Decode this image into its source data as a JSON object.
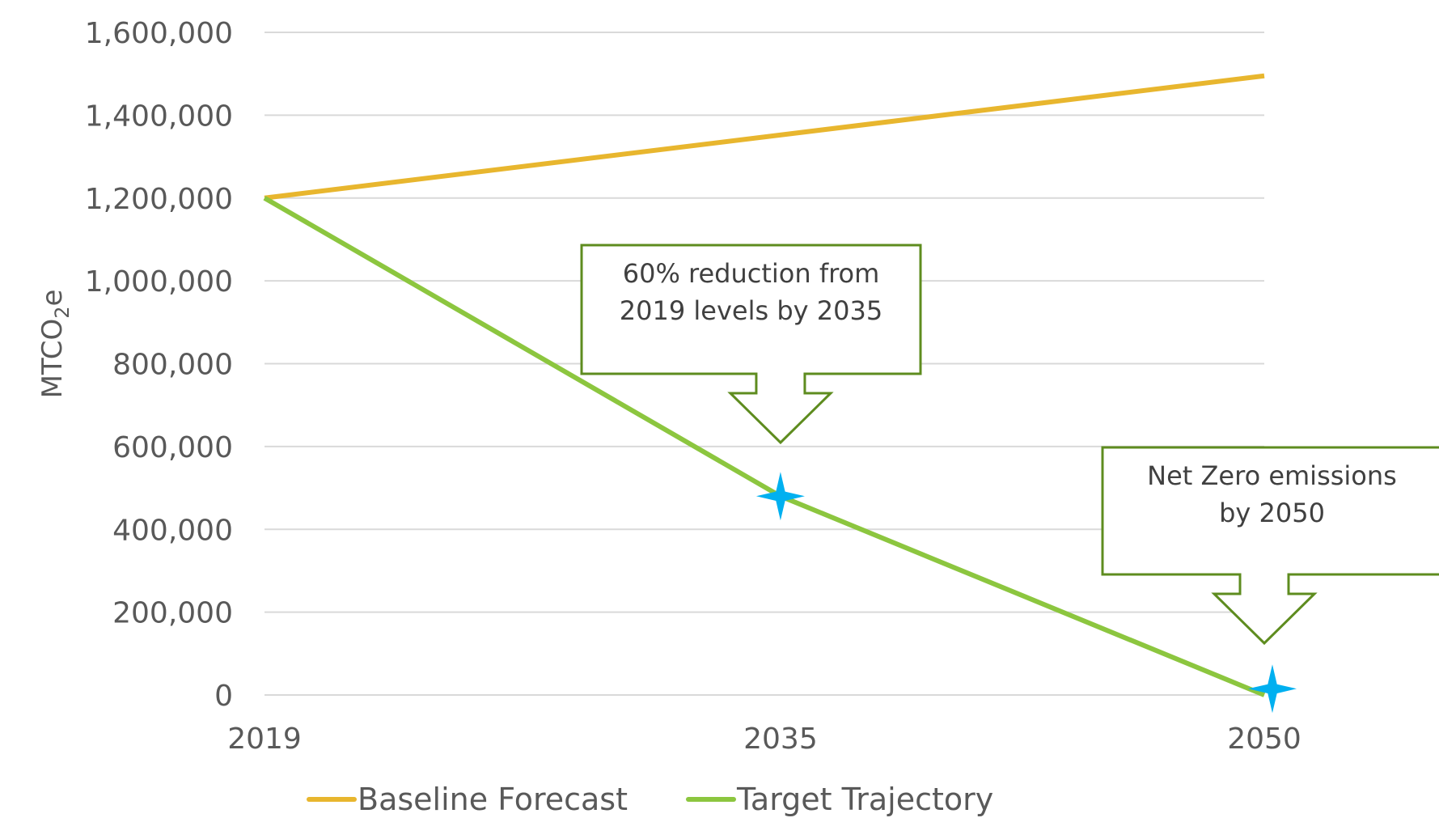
{
  "chart_data": {
    "type": "line",
    "x": [
      "2019",
      "2035",
      "2050"
    ],
    "x_values": [
      2019,
      2035,
      2050
    ],
    "ylabel": "MTCO2e",
    "ylabel_parts": {
      "main": "MTCO",
      "sub": "2",
      "suffix": "e"
    },
    "ylim": [
      0,
      1600000
    ],
    "yticks": [
      0,
      200000,
      400000,
      600000,
      800000,
      1000000,
      1200000,
      1400000,
      1600000
    ],
    "ytick_labels": [
      "0",
      "200,000",
      "400,000",
      "600,000",
      "800,000",
      "1,000,000",
      "1,200,000",
      "1,400,000",
      "1,600,000"
    ],
    "grid": true,
    "legend_position": "bottom",
    "series": [
      {
        "name": "Baseline Forecast",
        "color": "#e8b62e",
        "x": [
          2019,
          2050
        ],
        "values": [
          1200000,
          1495000
        ]
      },
      {
        "name": "Target Trajectory",
        "color": "#8cc63f",
        "x": [
          2019,
          2035,
          2050
        ],
        "values": [
          1200000,
          480000,
          0
        ]
      }
    ],
    "markers": [
      {
        "shape": "four-point-star",
        "color": "#00b0f0",
        "x": 2035,
        "y": 480000
      },
      {
        "shape": "four-point-star",
        "color": "#00b0f0",
        "x": 2050,
        "y": 15000
      }
    ],
    "annotations": [
      {
        "lines": [
          "60% reduction from",
          "2019 levels by 2035"
        ],
        "target_x": 2035
      },
      {
        "lines": [
          "Net Zero emissions",
          "by 2050"
        ],
        "target_x": 2050
      }
    ],
    "callout_border_color": "#5e8c1f"
  }
}
